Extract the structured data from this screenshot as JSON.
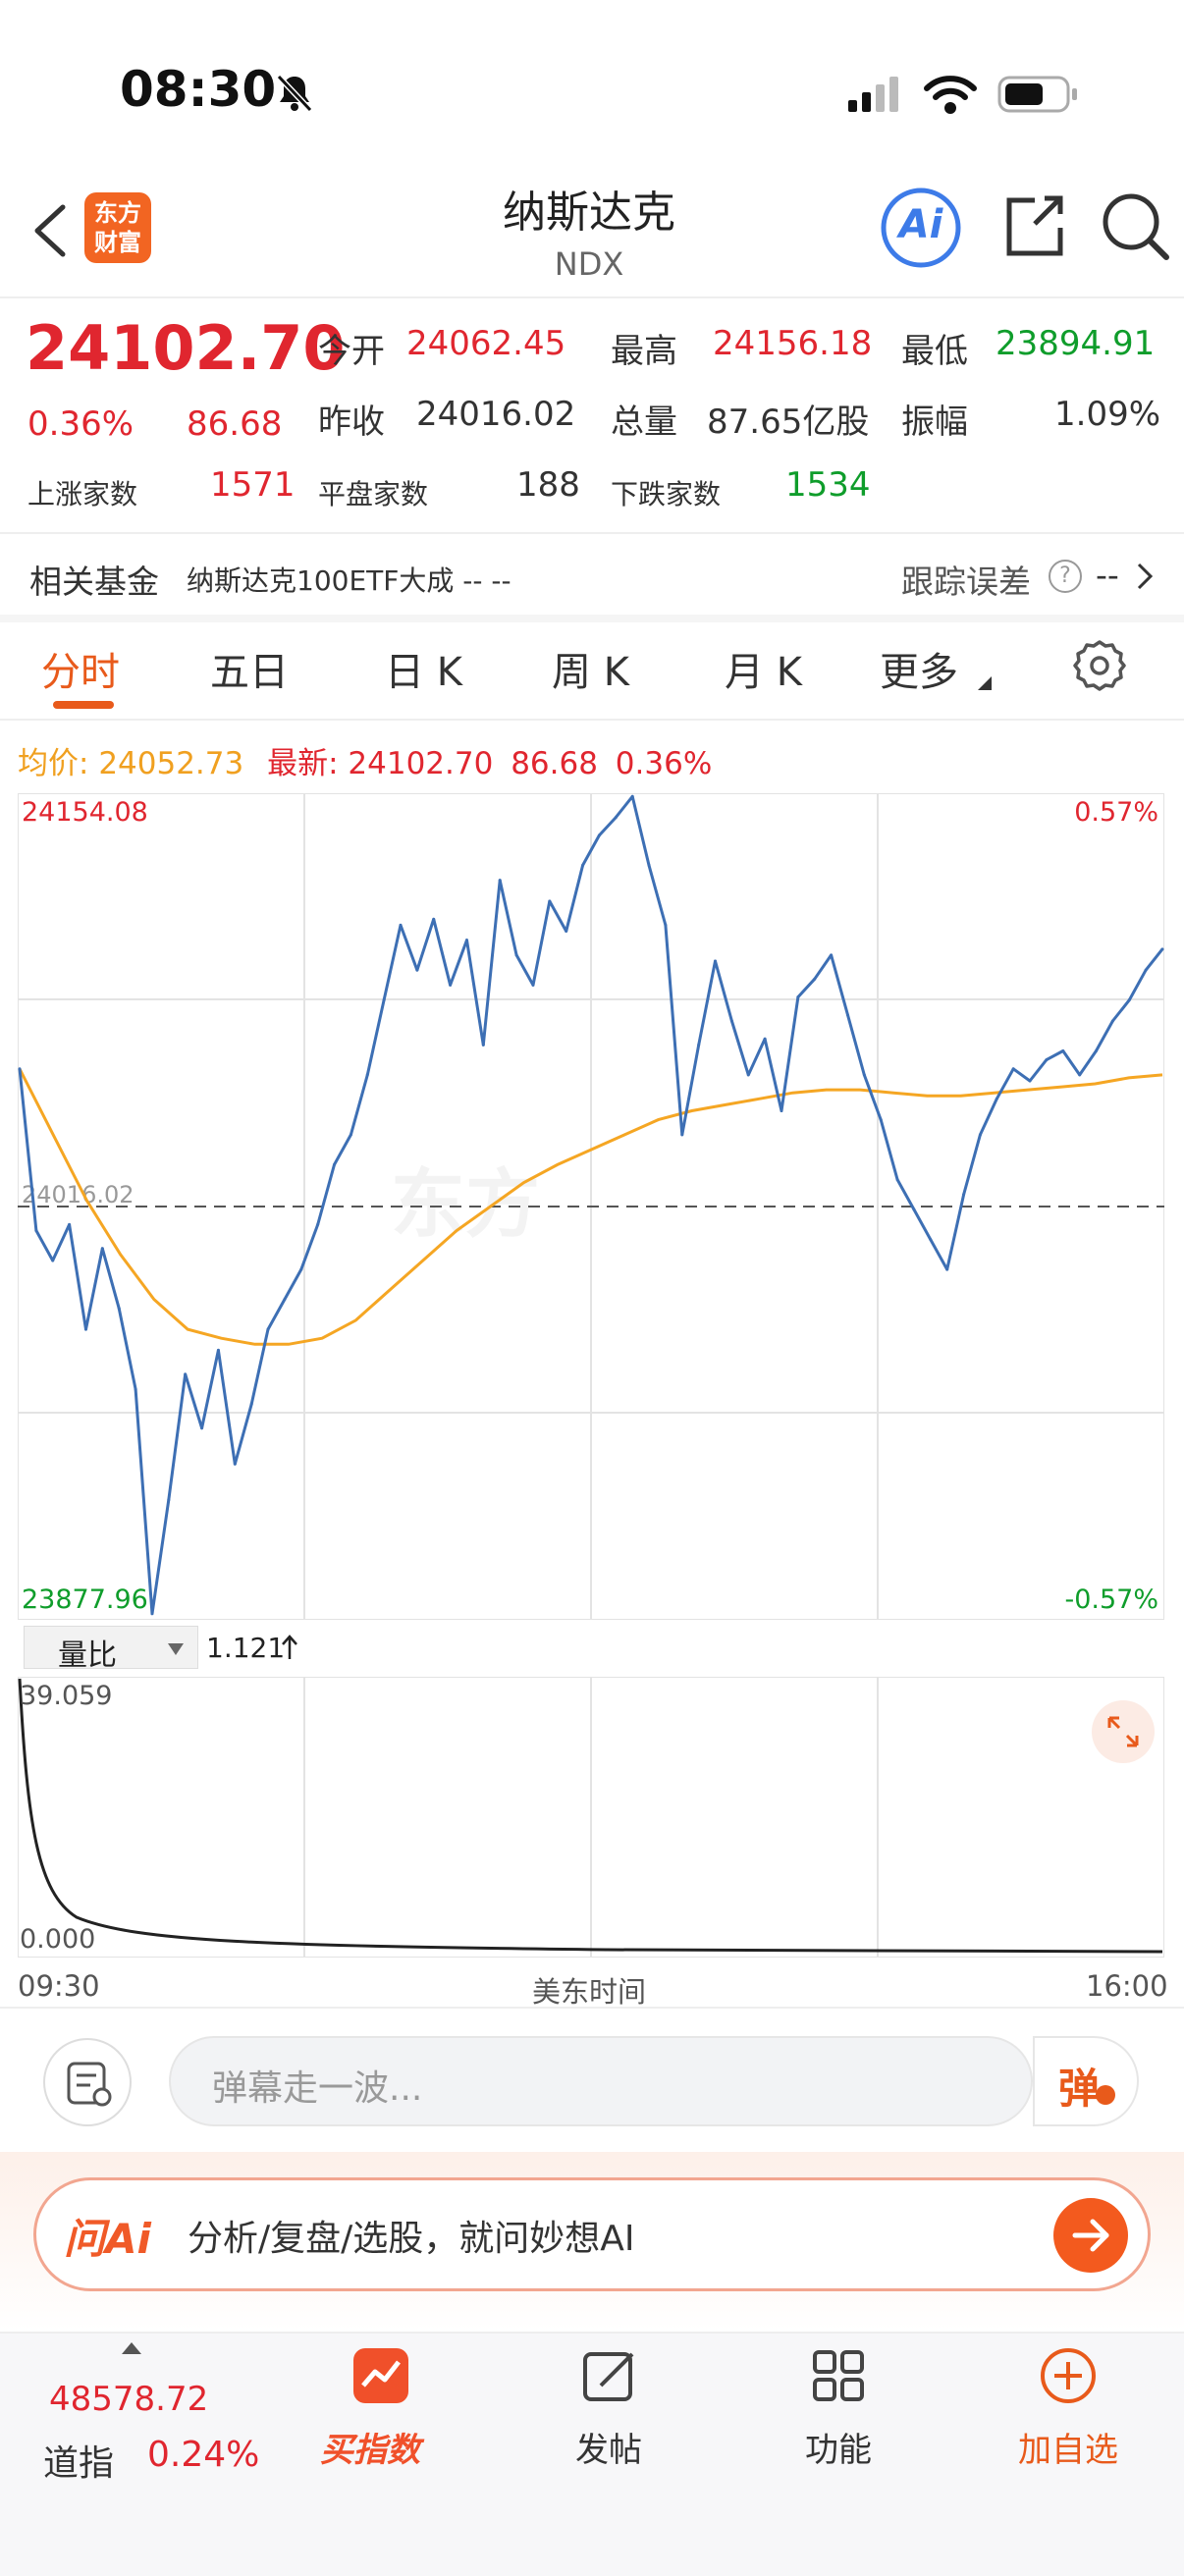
{
  "status": {
    "time": "08:30"
  },
  "header": {
    "logo_line1": "东方",
    "logo_line2": "财富",
    "title": "纳斯达克",
    "code": "NDX",
    "ai_label": "Ai"
  },
  "quote": {
    "price": "24102.70",
    "change_pct": "0.36%",
    "change": "86.68",
    "open_label": "今开",
    "open": "24062.45",
    "high_label": "最高",
    "high": "24156.18",
    "low_label": "最低",
    "low": "23894.91",
    "prev_label": "昨收",
    "prev": "24016.02",
    "vol_label": "总量",
    "vol": "87.65亿股",
    "amp_label": "振幅",
    "amp": "1.09%",
    "up_label": "上涨家数",
    "up": "1571",
    "flat_label": "平盘家数",
    "flat": "188",
    "down_label": "下跌家数",
    "down": "1534"
  },
  "fund": {
    "label": "相关基金",
    "name": "纳斯达克100ETF大成 -- --",
    "track_label": "跟踪误差",
    "track_value": "--"
  },
  "tabs": [
    "分时",
    "五日",
    "日 K",
    "周 K",
    "月 K",
    "更多"
  ],
  "chart_info": {
    "avg_label": "均价:",
    "avg": "24052.73",
    "latest_label": "最新:",
    "latest": "24102.70",
    "chg": "86.68",
    "pct": "0.36%"
  },
  "chart_data": {
    "type": "line",
    "ylim": [
      23877.96,
      24154.08
    ],
    "y_top_label": "24154.08",
    "y_bottom_label": "23877.96",
    "pct_top_label": "0.57%",
    "pct_bottom_label": "-0.57%",
    "baseline": 24016.02,
    "baseline_label": "24016.02",
    "series": [
      {
        "values": [
          24062,
          24008,
          23998,
          24010,
          23975,
          24002,
          23982,
          23955,
          23880,
          23918,
          23960,
          23942,
          23968,
          23930,
          23950,
          23975,
          23985,
          23995,
          24010,
          24030,
          24040,
          24060,
          24085,
          24110,
          24095,
          24112,
          24090,
          24105,
          24070,
          24125,
          24100,
          24090,
          24118,
          24108,
          24130,
          24140,
          24146,
          24153,
          24130,
          24110,
          24040,
          24070,
          24098,
          24078,
          24060,
          24072,
          24048,
          24086,
          24092,
          24100,
          24080,
          24060,
          24045,
          24025,
          24015,
          24005,
          23995,
          24020,
          24040,
          24052,
          24062,
          24058,
          24065,
          24068,
          24060,
          24068,
          24078,
          24085,
          24095,
          24102
        ]
      },
      {
        "values": [
          24062,
          24040,
          24018,
          24000,
          23985,
          23975,
          23972,
          23970,
          23970,
          23972,
          23978,
          23988,
          23998,
          24008,
          24016,
          24024,
          24030,
          24035,
          24040,
          24045,
          24048,
          24050,
          24052,
          24054,
          24055,
          24055,
          24054,
          24053,
          24053,
          24054,
          24055,
          24056,
          24057,
          24059,
          24060
        ]
      }
    ]
  },
  "volume": {
    "label": "量比",
    "value": "1.121",
    "top_label": "39.059",
    "bottom_label": "0.000",
    "time_start": "09:30",
    "time_mid": "美东时间",
    "time_end": "16:00"
  },
  "comment": {
    "placeholder": "弹幕走一波...",
    "danmu": "弹"
  },
  "ai_bar": {
    "brand": "问Ai",
    "text": "分析/复盘/选股，就问妙想AI"
  },
  "bottom": {
    "dji_value": "48578.72",
    "dji_name": "道指",
    "dji_pct": "0.24%",
    "nav": [
      "买指数",
      "发帖",
      "功能",
      "加自选"
    ]
  },
  "colors": {
    "up": "#e0262f",
    "down": "#0f9d2b",
    "accent": "#e85a1b",
    "avg": "#f5a623",
    "line": "#3d6fb4"
  }
}
